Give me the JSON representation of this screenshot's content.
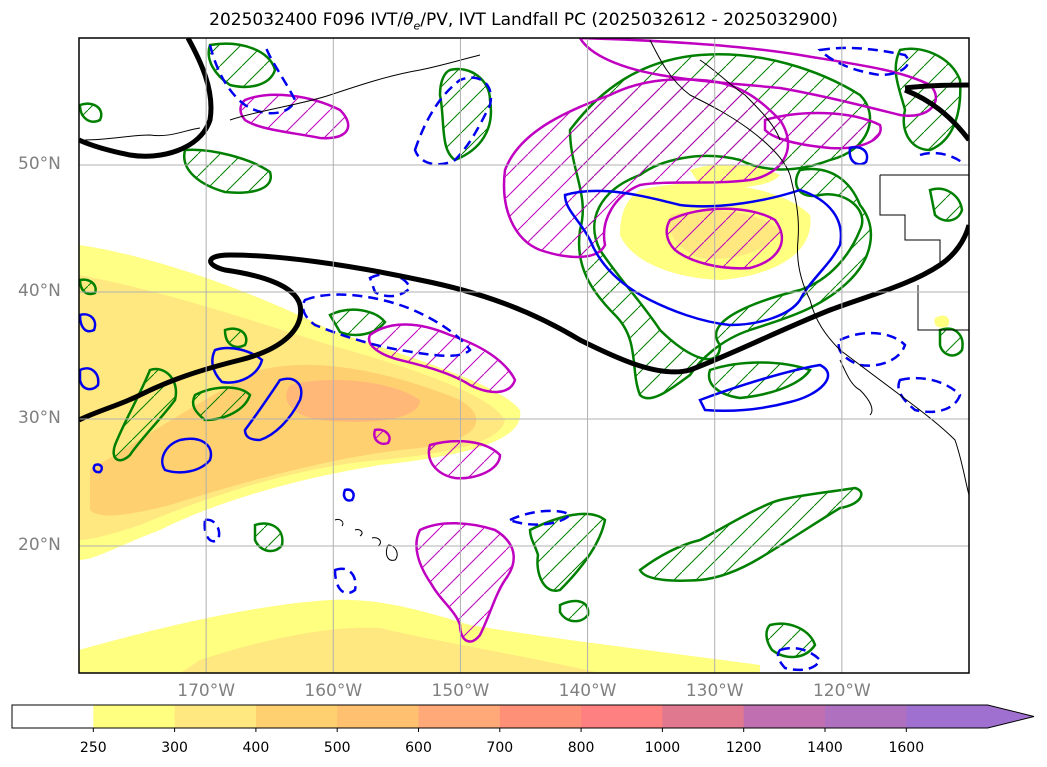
{
  "title": "2025032400 F096 IVT/θe/PV, IVT Landfall PC (2025032612 - 2025032900)",
  "title_parts": {
    "prefix": "2025032400 F096 IVT/",
    "theta": "θ",
    "sub": "e",
    "suffix": "/PV, IVT Landfall PC (2025032612 - 2025032900)"
  },
  "map": {
    "projection": "PlateCarree",
    "lon_range": [
      -180,
      -110
    ],
    "lat_range": [
      10,
      60
    ],
    "gridlines": true,
    "lat_ticks": [
      {
        "value": 20,
        "label": "20°N"
      },
      {
        "value": 30,
        "label": "30°N"
      },
      {
        "value": 40,
        "label": "40°N"
      },
      {
        "value": 50,
        "label": "50°N"
      }
    ],
    "lon_ticks": [
      {
        "value": -170,
        "label": "170°W"
      },
      {
        "value": -160,
        "label": "160°W"
      },
      {
        "value": -150,
        "label": "150°W"
      },
      {
        "value": -140,
        "label": "140°W"
      },
      {
        "value": -130,
        "label": "130°W"
      },
      {
        "value": -120,
        "label": "120°W"
      }
    ],
    "contour_colors": {
      "landfall_pc": "#000000",
      "theta_e_solid": "#0000ee",
      "theta_e_dashed": "#0000ee",
      "pv_hatched": "#008000",
      "pv_magenta": "#c000c0"
    }
  },
  "colorbar": {
    "levels": [
      250,
      300,
      400,
      500,
      600,
      700,
      800,
      1000,
      1200,
      1400,
      1600
    ],
    "labels": [
      "250",
      "300",
      "400",
      "500",
      "600",
      "700",
      "800",
      "1000",
      "1200",
      "1400",
      "1600"
    ],
    "colors": [
      "#ffffff",
      "#ffff80",
      "#ffe880",
      "#ffd070",
      "#ffc070",
      "#ffa878",
      "#ff9078",
      "#ff8080",
      "#e07890",
      "#c070b0",
      "#b070c0",
      "#a070d0"
    ],
    "extend": "max"
  }
}
